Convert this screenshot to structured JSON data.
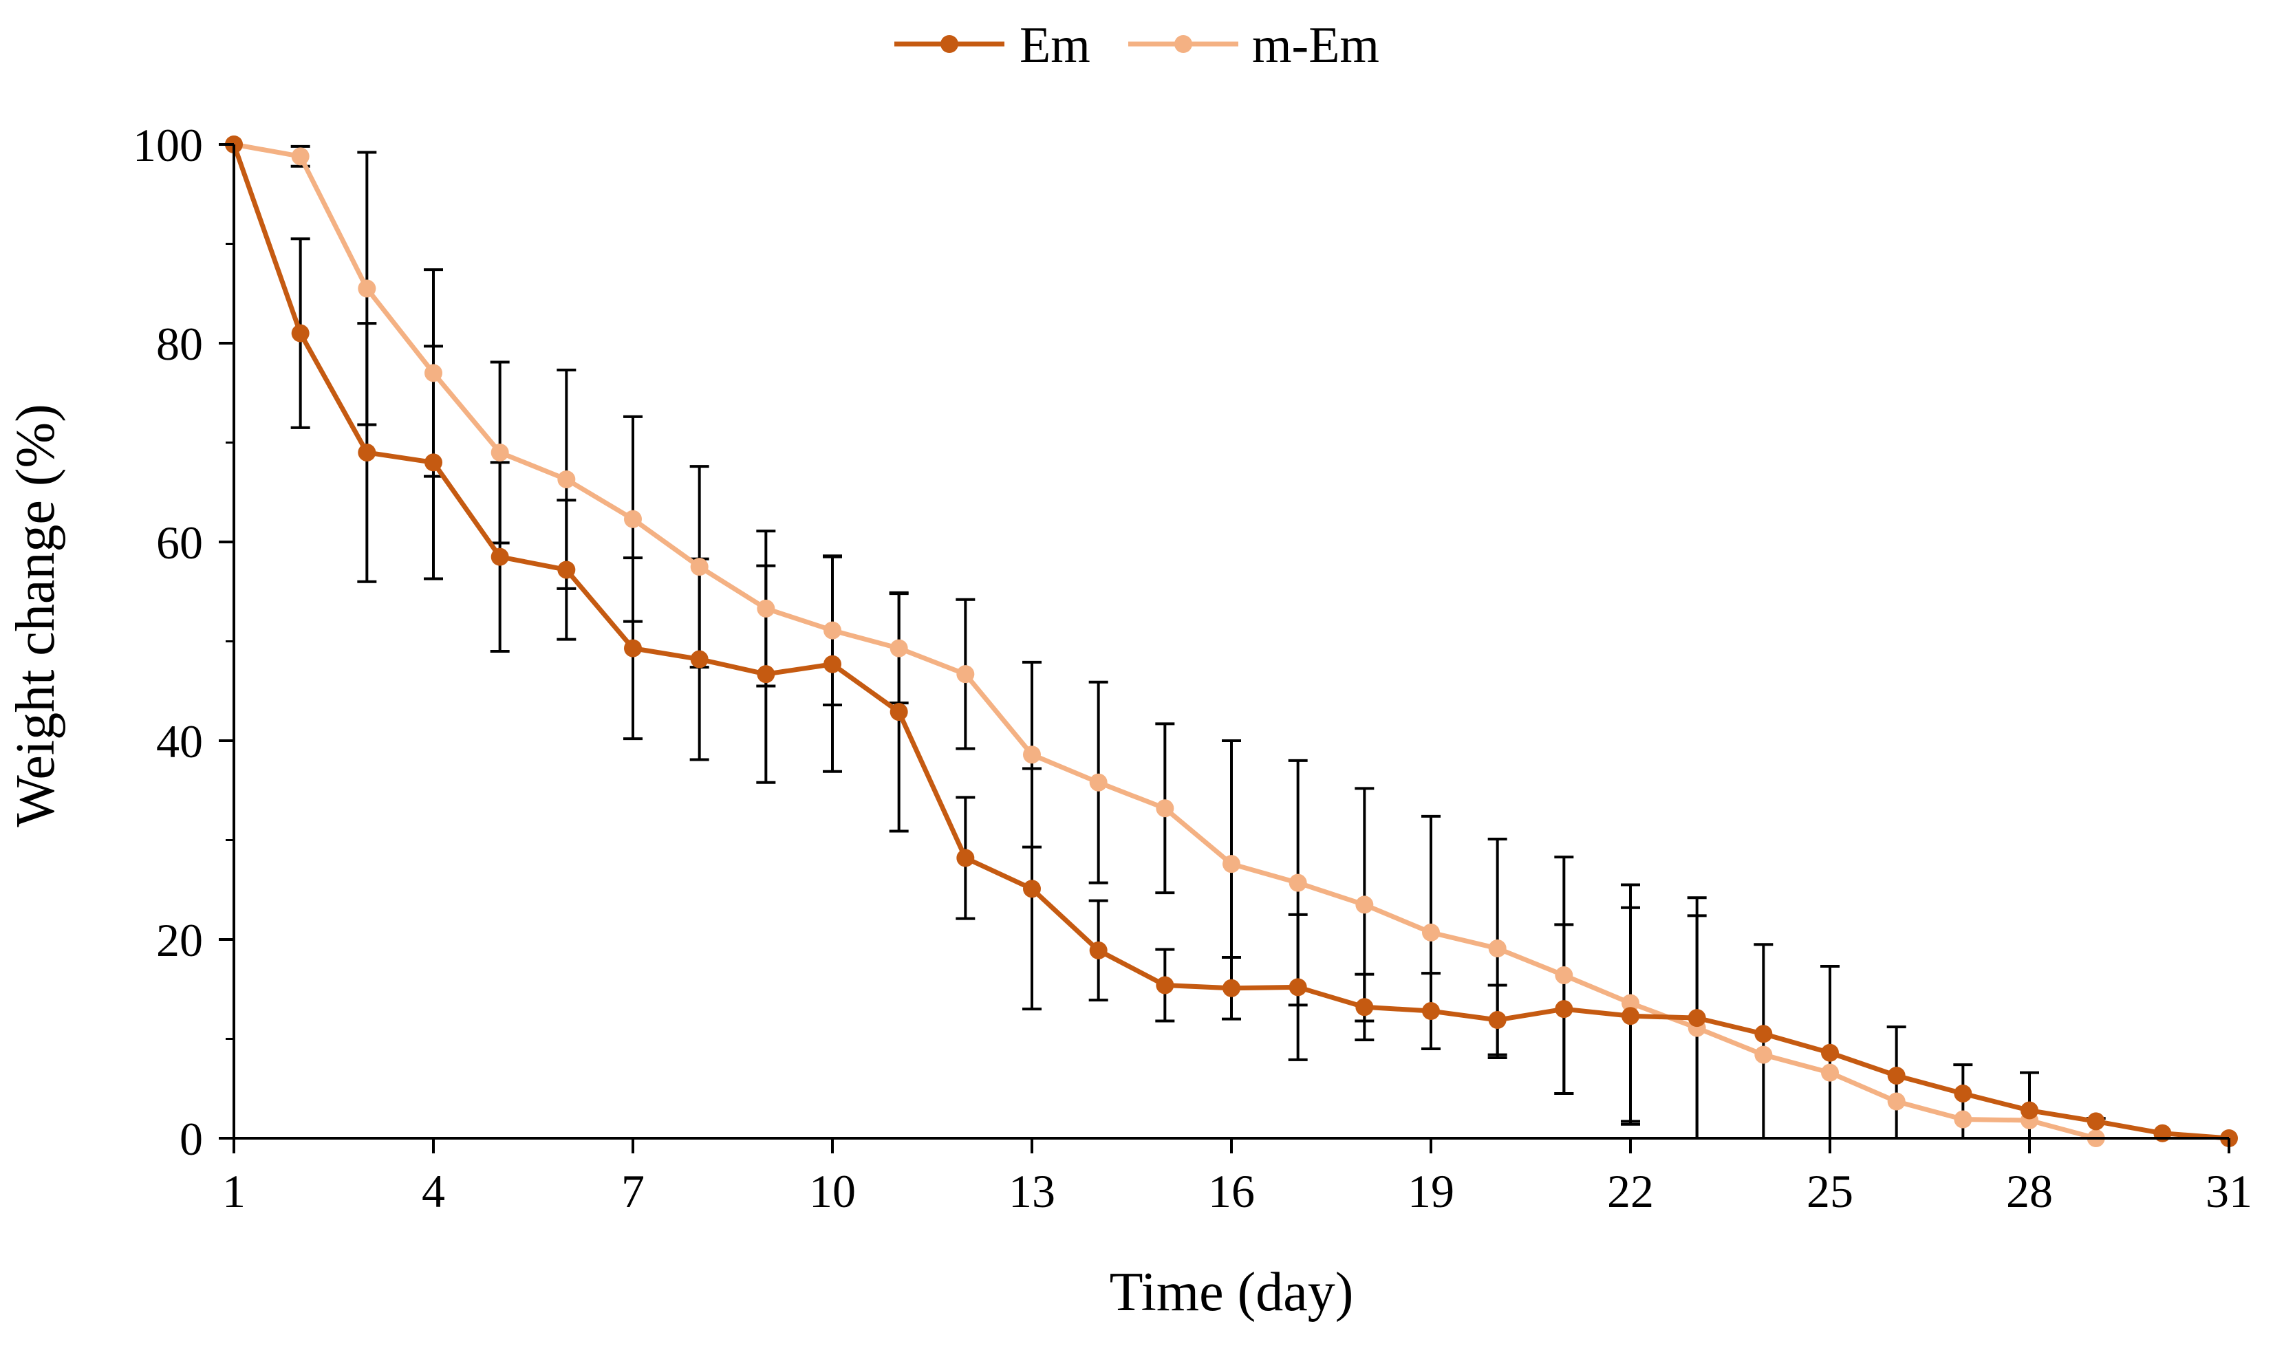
{
  "chart_data": {
    "type": "line",
    "title": "",
    "xlabel": "Time (day)",
    "ylabel": "Weight change (%)",
    "xlim": [
      1,
      31
    ],
    "ylim": [
      0,
      100
    ],
    "x_ticks": [
      1,
      4,
      7,
      10,
      13,
      16,
      19,
      22,
      25,
      28,
      31
    ],
    "x_tick_labels": [
      "1",
      "4",
      "7",
      "10",
      "13",
      "16",
      "19",
      "22",
      "25",
      "28",
      "31"
    ],
    "y_ticks": [
      0,
      20,
      40,
      60,
      80,
      100
    ],
    "y_tick_labels": [
      "0",
      "20",
      "40",
      "60",
      "80",
      "100"
    ],
    "grid": false,
    "legend_position": "top-center",
    "legend": [
      "Em",
      "m-Em"
    ],
    "series": [
      {
        "name": "Em",
        "color": "#C55A11",
        "x": [
          1,
          2,
          3,
          4,
          5,
          6,
          7,
          8,
          9,
          10,
          11,
          12,
          13,
          14,
          15,
          16,
          17,
          18,
          19,
          20,
          21,
          22,
          23,
          24,
          25,
          26,
          27,
          28,
          29,
          30,
          31
        ],
        "values": [
          100,
          81,
          69,
          68,
          58.5,
          57.2,
          49.3,
          48.2,
          46.7,
          47.7,
          42.9,
          28.2,
          25.1,
          18.9,
          15.4,
          15.1,
          15.2,
          13.2,
          12.8,
          11.9,
          13,
          12.3,
          12.1,
          10.5,
          8.6,
          6.3,
          4.5,
          2.8,
          1.7,
          0.5,
          0
        ],
        "error": [
          0,
          9.5,
          13,
          11.7,
          9.5,
          7,
          9.1,
          10.1,
          10.9,
          10.8,
          12,
          6.1,
          12.1,
          5,
          3.6,
          3.1,
          7.3,
          3.3,
          3.8,
          3.5,
          8.5,
          10.9,
          12.1,
          0,
          0,
          0,
          0,
          0,
          0,
          0,
          0
        ]
      },
      {
        "name": "m-Em",
        "color": "#F4B183",
        "x": [
          1,
          2,
          3,
          4,
          5,
          6,
          7,
          8,
          9,
          10,
          11,
          12,
          13,
          14,
          15,
          16,
          17,
          18,
          19,
          20,
          21,
          22,
          23,
          24,
          25,
          26,
          27,
          28,
          29
        ],
        "values": [
          100,
          98.8,
          85.5,
          77,
          69,
          66.3,
          62.3,
          57.5,
          53.3,
          51.1,
          49.3,
          46.7,
          38.6,
          35.8,
          33.2,
          27.6,
          25.7,
          23.5,
          20.7,
          19.1,
          16.4,
          13.6,
          11.1,
          8.4,
          6.6,
          3.7,
          1.9,
          1.8,
          0
        ],
        "error": [
          0,
          1,
          13.7,
          10.4,
          9.1,
          11,
          10.3,
          10.1,
          7.8,
          7.5,
          5.5,
          7.5,
          9.3,
          10.1,
          8.5,
          12.4,
          12.3,
          11.7,
          11.7,
          11,
          11.9,
          11.9,
          11.3,
          11.1,
          10.7,
          7.5,
          5.5,
          4.8,
          2
        ]
      }
    ]
  }
}
